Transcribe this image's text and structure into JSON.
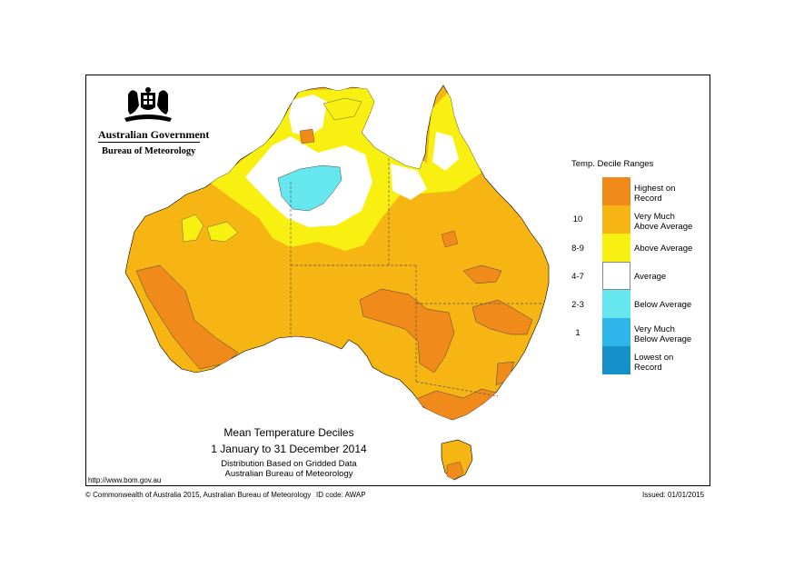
{
  "header": {
    "org_name": "Australian Government",
    "agency_name": "Bureau of Meteorology"
  },
  "legend": {
    "title": "Temp. Decile Ranges",
    "items": [
      {
        "range": "",
        "label_line1": "Highest on",
        "label_line2": "Record",
        "color": "#F08A1A"
      },
      {
        "range": "10",
        "label_line1": "Very Much",
        "label_line2": "Above Average",
        "color": "#F6B512"
      },
      {
        "range": "8-9",
        "label_line1": "Above Average",
        "label_line2": "",
        "color": "#F8F010"
      },
      {
        "range": "4-7",
        "label_line1": "Average",
        "label_line2": "",
        "color": "#FFFFFF"
      },
      {
        "range": "2-3",
        "label_line1": "Below Average",
        "label_line2": "",
        "color": "#66E6EE"
      },
      {
        "range": "1",
        "label_line1": "Very Much",
        "label_line2": "Below Average",
        "color": "#2EB6E8"
      },
      {
        "range": "",
        "label_line1": "Lowest on",
        "label_line2": "Record",
        "color": "#1590C8"
      }
    ]
  },
  "title": {
    "line1": "Mean Temperature Deciles",
    "line2": "1 January to 31 December 2014",
    "line3": "Distribution Based on Gridded Data",
    "line4": "Australian Bureau of Meteorology"
  },
  "url": "http://www.bom.gov.au",
  "footer": {
    "copyright": "© Commonwealth of Australia 2015, Australian Bureau of Meteorology",
    "id_code": "ID code: AWAP",
    "issued": "Issued: 01/01/2015"
  }
}
